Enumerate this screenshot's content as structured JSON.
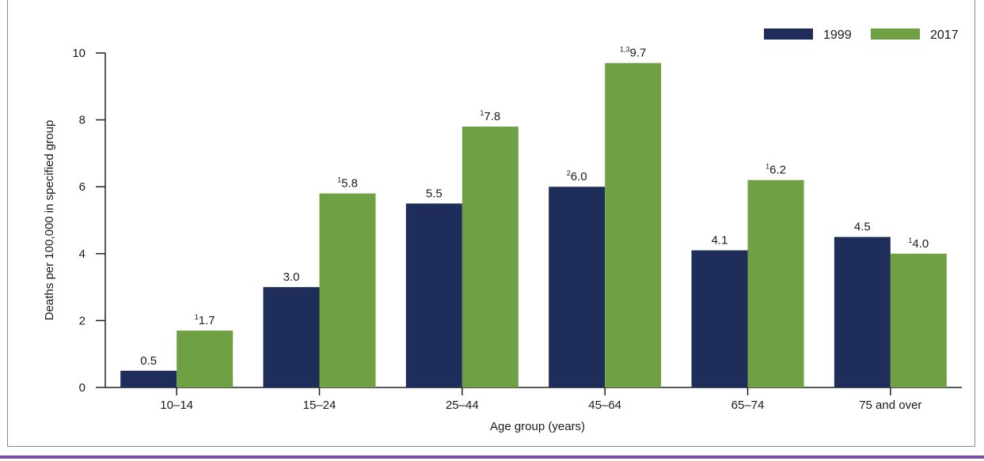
{
  "chart_data": {
    "type": "bar",
    "xlabel": "Age group (years)",
    "ylabel": "Deaths per 100,000 in specified group",
    "ylim": [
      0,
      10
    ],
    "yticks": [
      "0",
      "2",
      "4",
      "6",
      "8",
      "10"
    ],
    "categories": [
      "10–14",
      "15–24",
      "25–44",
      "45–64",
      "65–74",
      "75 and over"
    ],
    "legend_position": "top-right",
    "grid": false,
    "series": [
      {
        "name": "1999",
        "color": "#1f2d5a",
        "values": [
          0.5,
          3.0,
          5.5,
          6.0,
          4.1,
          4.5
        ],
        "labels": [
          "0.5",
          "3.0",
          "5.5",
          "6.0",
          "4.1",
          "4.5"
        ],
        "label_superscripts": [
          "",
          "",
          "",
          "2",
          "",
          ""
        ]
      },
      {
        "name": "2017",
        "color": "#6fa043",
        "values": [
          1.7,
          5.8,
          7.8,
          9.7,
          6.2,
          4.0
        ],
        "labels": [
          "1.7",
          "5.8",
          "7.8",
          "9.7",
          "6.2",
          "4.0"
        ],
        "label_superscripts": [
          "1",
          "1",
          "1",
          "1,3",
          "1",
          "1"
        ]
      }
    ]
  }
}
